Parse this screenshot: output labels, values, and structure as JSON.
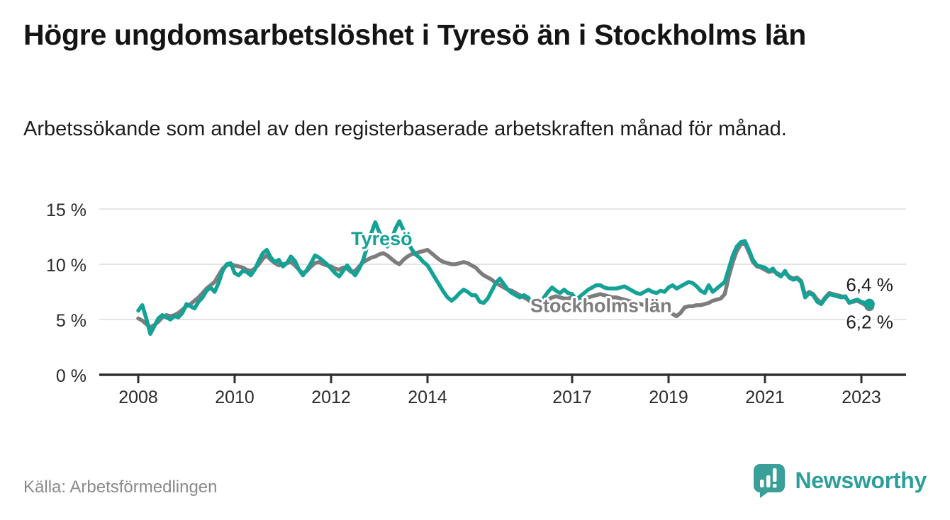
{
  "header": {
    "title": "Högre ungdomsarbetslöshet i Tyresö än i Stockholms län",
    "subtitle": "Arbetssökande som andel av den registerbaserade arbetskraften månad för månad."
  },
  "footer": {
    "source": "Källa: Arbetsförmedlingen",
    "brand": {
      "name": "Newsworthy",
      "icon": "bar-chart-speech-bubble-icon",
      "color": "#2d9f9b"
    }
  },
  "chart_data": {
    "type": "line",
    "title": "Högre ungdomsarbetslöshet i Tyresö än i Stockholms län",
    "subtitle": "Arbetssökande som andel av den registerbaserade arbetskraften månad för månad.",
    "xlabel": "",
    "ylabel": "",
    "grid": true,
    "x_start_year": 2008,
    "x_step_months": 1,
    "x_end": "2023-03",
    "xlim": [
      2007.2,
      2023.9
    ],
    "ylim": [
      0,
      15.9
    ],
    "x_tick_years": [
      2008,
      2010,
      2012,
      2014,
      2017,
      2019,
      2021,
      2023
    ],
    "x_tick_labels": [
      "2008",
      "2010",
      "2012",
      "2014",
      "2017",
      "2019",
      "2021",
      "2023"
    ],
    "y_tick_values": [
      0,
      5,
      10,
      15
    ],
    "y_tick_labels": [
      "0 %",
      "5 %",
      "10 %",
      "15 %"
    ],
    "colors": {
      "axis": "#2f2f2f",
      "gridline": "#dcdcdc",
      "tyreso": "#14a296",
      "stockholm": "#7d7d7d"
    },
    "series": [
      {
        "name": "Tyresö",
        "color": "#14a296",
        "inline_label": {
          "text": "Tyresö",
          "year": 2013.05,
          "value": 12.3
        },
        "end_label": "6,4 %",
        "end_value": 6.4,
        "values": [
          5.8,
          6.3,
          5.1,
          3.7,
          4.4,
          5.1,
          5.4,
          5.2,
          5.0,
          5.3,
          5.2,
          5.6,
          6.4,
          6.2,
          6.0,
          6.6,
          7.0,
          7.6,
          7.9,
          7.5,
          8.3,
          9.4,
          10.0,
          10.1,
          9.2,
          9.0,
          9.4,
          9.3,
          9.0,
          9.5,
          10.3,
          11.0,
          11.3,
          10.6,
          10.2,
          10.4,
          9.8,
          10.1,
          10.7,
          10.3,
          9.5,
          9.0,
          9.5,
          10.1,
          10.8,
          10.6,
          10.3,
          10.0,
          9.6,
          9.2,
          8.9,
          9.4,
          9.9,
          9.4,
          9.0,
          9.6,
          10.4,
          11.6,
          12.8,
          13.8,
          12.9,
          12.1,
          11.6,
          12.2,
          13.2,
          13.9,
          13.1,
          12.2,
          11.4,
          10.9,
          10.6,
          10.2,
          9.9,
          9.3,
          8.7,
          8.1,
          7.5,
          7.0,
          6.7,
          7.0,
          7.4,
          7.7,
          7.5,
          7.2,
          7.2,
          6.6,
          6.5,
          6.9,
          7.6,
          8.3,
          8.7,
          8.2,
          7.7,
          7.4,
          7.2,
          7.0,
          7.2,
          7.0,
          6.6,
          6.2,
          6.5,
          7.0,
          7.5,
          7.9,
          7.6,
          7.4,
          7.7,
          7.4,
          7.3,
          6.8,
          7.1,
          7.4,
          7.7,
          7.9,
          8.1,
          8.1,
          7.9,
          7.8,
          7.8,
          7.8,
          7.9,
          8.0,
          7.8,
          7.6,
          7.4,
          7.3,
          7.5,
          7.7,
          7.5,
          7.4,
          7.6,
          7.5,
          7.9,
          8.1,
          7.8,
          8.0,
          8.2,
          8.4,
          8.3,
          8.0,
          7.6,
          7.4,
          8.1,
          7.5,
          7.8,
          8.1,
          8.4,
          9.6,
          10.8,
          11.6,
          12.0,
          12.1,
          11.3,
          10.4,
          9.9,
          9.8,
          9.7,
          9.4,
          9.6,
          9.1,
          8.9,
          9.4,
          8.8,
          8.6,
          8.7,
          8.4,
          7.0,
          7.4,
          7.2,
          6.6,
          6.4,
          6.9,
          7.3,
          7.2,
          7.1,
          7.0,
          7.1,
          6.5,
          6.7,
          6.8,
          6.6,
          6.5,
          6.4
        ]
      },
      {
        "name": "Stockholms län",
        "color": "#7d7d7d",
        "inline_label": {
          "text": "Stockholms län",
          "year": 2017.6,
          "value": 6.25
        },
        "end_label": "6,2 %",
        "end_value": 6.2,
        "values": [
          5.1,
          4.9,
          4.6,
          4.3,
          4.5,
          4.8,
          5.2,
          5.4,
          5.3,
          5.4,
          5.6,
          5.9,
          6.2,
          6.4,
          6.7,
          7.0,
          7.4,
          7.8,
          8.1,
          8.4,
          9.0,
          9.6,
          9.9,
          10.0,
          9.9,
          9.8,
          9.7,
          9.5,
          9.4,
          9.6,
          10.0,
          10.5,
          10.8,
          10.4,
          10.1,
          9.9,
          10.0,
          10.1,
          10.2,
          9.9,
          9.5,
          9.2,
          9.4,
          9.8,
          10.1,
          10.2,
          10.0,
          9.9,
          9.8,
          9.6,
          9.5,
          9.7,
          9.6,
          9.3,
          9.4,
          9.8,
          10.2,
          10.4,
          10.6,
          10.7,
          10.9,
          11.0,
          10.8,
          10.5,
          10.2,
          10.0,
          10.4,
          10.7,
          10.9,
          11.0,
          11.1,
          11.2,
          11.3,
          11.0,
          10.7,
          10.4,
          10.2,
          10.1,
          10.0,
          10.0,
          10.1,
          10.2,
          10.1,
          9.9,
          9.7,
          9.3,
          9.0,
          8.8,
          8.6,
          8.3,
          8.1,
          7.9,
          7.7,
          7.6,
          7.4,
          7.2,
          7.0,
          6.8,
          6.5,
          6.3,
          6.4,
          6.6,
          6.8,
          7.0,
          7.1,
          7.0,
          6.9,
          6.9,
          7.0,
          6.9,
          6.8,
          6.9,
          7.0,
          7.1,
          7.2,
          7.3,
          7.2,
          7.1,
          7.0,
          7.0,
          6.9,
          6.8,
          6.7,
          6.6,
          6.5,
          6.4,
          6.3,
          6.3,
          6.2,
          6.1,
          6.1,
          6.0,
          5.9,
          5.5,
          5.3,
          5.6,
          6.1,
          6.2,
          6.2,
          6.3,
          6.3,
          6.4,
          6.5,
          6.7,
          6.8,
          6.9,
          7.3,
          8.9,
          10.2,
          11.2,
          11.8,
          11.9,
          11.1,
          10.2,
          9.8,
          9.7,
          9.5,
          9.3,
          9.4,
          9.2,
          9.0,
          9.2,
          8.9,
          8.7,
          8.8,
          8.5,
          7.2,
          7.5,
          7.3,
          6.8,
          6.5,
          7.0,
          7.4,
          7.3,
          7.2,
          7.1,
          7.0,
          6.6,
          6.6,
          6.7,
          6.5,
          6.3,
          6.2
        ]
      }
    ]
  }
}
